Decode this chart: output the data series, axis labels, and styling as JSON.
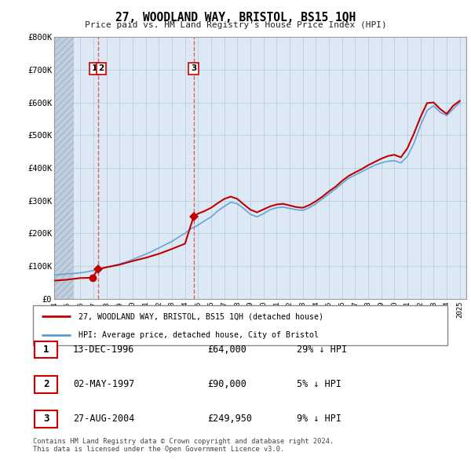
{
  "title": "27, WOODLAND WAY, BRISTOL, BS15 1QH",
  "subtitle": "Price paid vs. HM Land Registry's House Price Index (HPI)",
  "ylim": [
    0,
    800000
  ],
  "yticks": [
    0,
    100000,
    200000,
    300000,
    400000,
    500000,
    600000,
    700000,
    800000
  ],
  "ytick_labels": [
    "£0",
    "£100K",
    "£200K",
    "£300K",
    "£400K",
    "£500K",
    "£600K",
    "£700K",
    "£800K"
  ],
  "xlim_start": 1994.0,
  "xlim_end": 2025.5,
  "chart_bg_color": "#dce9f5",
  "hpi_color": "#5b9bd5",
  "price_color": "#c00000",
  "sale_marker_color": "#c00000",
  "vline_color": "#e06060",
  "annotation_box_color": "#cc0000",
  "grid_color": "#b8cfe0",
  "hatch_color": "#c8d8e8",
  "legend_line1": "27, WOODLAND WAY, BRISTOL, BS15 1QH (detached house)",
  "legend_line2": "HPI: Average price, detached house, City of Bristol",
  "table_rows": [
    {
      "num": "1",
      "date": "13-DEC-1996",
      "price": "£64,000",
      "hpi": "29% ↓ HPI"
    },
    {
      "num": "2",
      "date": "02-MAY-1997",
      "price": "£90,000",
      "hpi": "5% ↓ HPI"
    },
    {
      "num": "3",
      "date": "27-AUG-2004",
      "price": "£249,950",
      "hpi": "9% ↓ HPI"
    }
  ],
  "footer": "Contains HM Land Registry data © Crown copyright and database right 2024.\nThis data is licensed under the Open Government Licence v3.0.",
  "sales": [
    {
      "year": 1996.95,
      "price": 64000,
      "label": "1",
      "vline_year": 1997.35
    },
    {
      "year": 1997.33,
      "price": 90000,
      "label": "2",
      "vline_year": 1997.35
    },
    {
      "year": 2004.65,
      "price": 249950,
      "label": "3",
      "vline_year": 2004.65
    }
  ],
  "hatch_end": 1995.5
}
